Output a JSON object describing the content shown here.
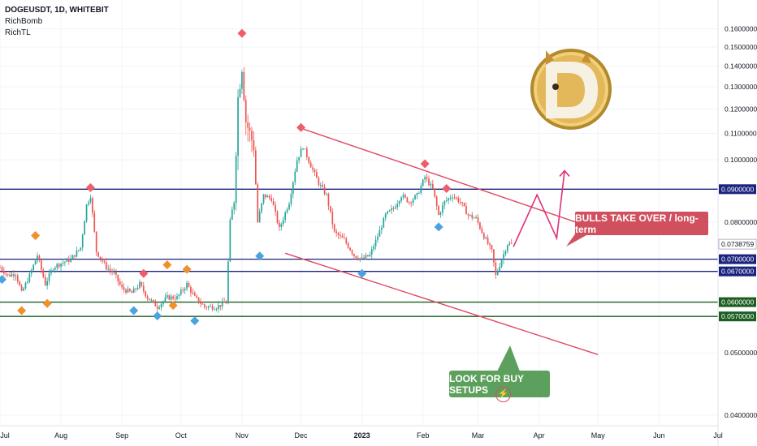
{
  "legend": {
    "symbol": "DOGEUSDT, 1D, WHITEBIT",
    "indicators": [
      "RichBomb",
      "RichTL"
    ]
  },
  "logo": {
    "letter": "D",
    "name": "dogecoin-logo"
  },
  "annotations": {
    "bulls": "BULLS TAKE OVER / long-term",
    "buy": "LOOK FOR BUY SETUPS"
  },
  "flash_icon": "lightning-icon",
  "colors": {
    "up": "#26a69a",
    "down": "#ef5350",
    "trendline": "#e04860",
    "resistance": "#1a237e",
    "support": "#1b5e20",
    "projection": "#e0307a",
    "marker_red": "#ef5d6b",
    "marker_blue": "#4aa3df",
    "marker_orange": "#f0902a",
    "callout_red": "#d05060",
    "callout_green": "#5da05d"
  },
  "chart_data": {
    "type": "candlestick",
    "symbol": "DOGEUSDT",
    "timeframe": "1D",
    "exchange": "WHITEBIT",
    "y_scale": "log",
    "ylim": [
      0.0385,
      0.1775
    ],
    "x_start": "2022-07-01",
    "x_end": "2023-07-01",
    "last_price": "0.0738759",
    "y_ticks": [
      {
        "value": 0.16,
        "label": "0.1600000"
      },
      {
        "value": 0.15,
        "label": "0.1500000"
      },
      {
        "value": 0.14,
        "label": "0.1400000"
      },
      {
        "value": 0.13,
        "label": "0.1300000"
      },
      {
        "value": 0.12,
        "label": "0.1200000"
      },
      {
        "value": 0.11,
        "label": "0.1100000"
      },
      {
        "value": 0.1,
        "label": "0.1000000"
      },
      {
        "value": 0.08,
        "label": "0.0800000"
      },
      {
        "value": 0.05,
        "label": "0.0500000"
      },
      {
        "value": 0.04,
        "label": "0.0400000"
      }
    ],
    "x_ticks": [
      {
        "date": "2022-07-01",
        "label": "Jul",
        "bold": false
      },
      {
        "date": "2022-08-01",
        "label": "Aug",
        "bold": false
      },
      {
        "date": "2022-09-01",
        "label": "Sep",
        "bold": false
      },
      {
        "date": "2022-10-01",
        "label": "Oct",
        "bold": false
      },
      {
        "date": "2022-11-01",
        "label": "Nov",
        "bold": false
      },
      {
        "date": "2022-12-01",
        "label": "Dec",
        "bold": false
      },
      {
        "date": "2023-01-01",
        "label": "2023",
        "bold": true
      },
      {
        "date": "2023-02-01",
        "label": "Feb",
        "bold": false
      },
      {
        "date": "2023-03-01",
        "label": "Mar",
        "bold": false
      },
      {
        "date": "2023-04-01",
        "label": "Apr",
        "bold": false
      },
      {
        "date": "2023-05-01",
        "label": "May",
        "bold": false
      },
      {
        "date": "2023-06-01",
        "label": "Jun",
        "bold": false
      },
      {
        "date": "2023-07-01",
        "label": "Jul",
        "bold": false
      }
    ],
    "horizontal_levels": [
      {
        "value": 0.09,
        "label": "0.0900000",
        "kind": "resistance"
      },
      {
        "value": 0.07,
        "label": "0.0700000",
        "kind": "resistance"
      },
      {
        "value": 0.067,
        "label": "0.0670000",
        "kind": "resistance"
      },
      {
        "value": 0.06,
        "label": "0.0600000",
        "kind": "support"
      },
      {
        "value": 0.057,
        "label": "0.0570000",
        "kind": "support"
      }
    ],
    "trendlines": [
      {
        "from": {
          "date": "2022-12-01",
          "value": 0.112
        },
        "to": {
          "date": "2023-04-30",
          "value": 0.078
        }
      },
      {
        "from": {
          "date": "2022-11-23",
          "value": 0.0715
        },
        "to": {
          "date": "2023-05-01",
          "value": 0.0497
        }
      }
    ],
    "projection_path": [
      {
        "date": "2023-03-19",
        "value": 0.0732
      },
      {
        "date": "2023-03-31",
        "value": 0.0882
      },
      {
        "date": "2023-04-10",
        "value": 0.0755
      },
      {
        "date": "2023-04-14",
        "value": 0.0962
      }
    ],
    "markers": [
      {
        "date": "2022-07-02",
        "type": "blue",
        "value": 0.0651
      },
      {
        "date": "2022-07-12",
        "type": "orange",
        "value": 0.0582
      },
      {
        "date": "2022-07-19",
        "type": "orange",
        "value": 0.0762
      },
      {
        "date": "2022-07-25",
        "type": "orange",
        "value": 0.0597
      },
      {
        "date": "2022-08-16",
        "type": "red",
        "value": 0.0905
      },
      {
        "date": "2022-09-07",
        "type": "blue",
        "value": 0.0582
      },
      {
        "date": "2022-09-12",
        "type": "red",
        "value": 0.0665
      },
      {
        "date": "2022-09-19",
        "type": "blue",
        "value": 0.0571
      },
      {
        "date": "2022-09-24",
        "type": "orange",
        "value": 0.0686
      },
      {
        "date": "2022-09-27",
        "type": "orange",
        "value": 0.0593
      },
      {
        "date": "2022-10-04",
        "type": "orange",
        "value": 0.0675
      },
      {
        "date": "2022-10-08",
        "type": "blue",
        "value": 0.0561
      },
      {
        "date": "2022-11-01",
        "type": "red",
        "value": 0.1575
      },
      {
        "date": "2022-11-10",
        "type": "blue",
        "value": 0.0708
      },
      {
        "date": "2022-12-01",
        "type": "red",
        "value": 0.1123
      },
      {
        "date": "2023-01-01",
        "type": "blue",
        "value": 0.0665
      },
      {
        "date": "2023-02-02",
        "type": "red",
        "value": 0.0986
      },
      {
        "date": "2023-02-09",
        "type": "blue",
        "value": 0.0786
      },
      {
        "date": "2023-02-13",
        "type": "red",
        "value": 0.0902
      }
    ],
    "price_path": [
      [
        "2022-07-01",
        0.068
      ],
      [
        "2022-07-05",
        0.066
      ],
      [
        "2022-07-09",
        0.0665
      ],
      [
        "2022-07-12",
        0.062
      ],
      [
        "2022-07-16",
        0.066
      ],
      [
        "2022-07-20",
        0.071
      ],
      [
        "2022-07-24",
        0.064
      ],
      [
        "2022-07-28",
        0.068
      ],
      [
        "2022-08-01",
        0.069
      ],
      [
        "2022-08-06",
        0.07
      ],
      [
        "2022-08-11",
        0.073
      ],
      [
        "2022-08-14",
        0.085
      ],
      [
        "2022-08-16",
        0.088
      ],
      [
        "2022-08-19",
        0.072
      ],
      [
        "2022-08-24",
        0.068
      ],
      [
        "2022-08-28",
        0.0665
      ],
      [
        "2022-09-01",
        0.063
      ],
      [
        "2022-09-06",
        0.062
      ],
      [
        "2022-09-10",
        0.064
      ],
      [
        "2022-09-14",
        0.061
      ],
      [
        "2022-09-19",
        0.059
      ],
      [
        "2022-09-24",
        0.061
      ],
      [
        "2022-09-29",
        0.061
      ],
      [
        "2022-10-04",
        0.064
      ],
      [
        "2022-10-08",
        0.061
      ],
      [
        "2022-10-13",
        0.059
      ],
      [
        "2022-10-19",
        0.059
      ],
      [
        "2022-10-24",
        0.06
      ],
      [
        "2022-10-26",
        0.08
      ],
      [
        "2022-10-28",
        0.087
      ],
      [
        "2022-10-30",
        0.125
      ],
      [
        "2022-11-01",
        0.14
      ],
      [
        "2022-11-03",
        0.115
      ],
      [
        "2022-11-05",
        0.11
      ],
      [
        "2022-11-07",
        0.105
      ],
      [
        "2022-11-09",
        0.08
      ],
      [
        "2022-11-12",
        0.088
      ],
      [
        "2022-11-16",
        0.087
      ],
      [
        "2022-11-20",
        0.078
      ],
      [
        "2022-11-25",
        0.086
      ],
      [
        "2022-11-29",
        0.1
      ],
      [
        "2022-12-02",
        0.105
      ],
      [
        "2022-12-06",
        0.098
      ],
      [
        "2022-12-10",
        0.092
      ],
      [
        "2022-12-14",
        0.088
      ],
      [
        "2022-12-18",
        0.077
      ],
      [
        "2022-12-23",
        0.075
      ],
      [
        "2022-12-28",
        0.071
      ],
      [
        "2023-01-01",
        0.07
      ],
      [
        "2023-01-05",
        0.071
      ],
      [
        "2023-01-09",
        0.076
      ],
      [
        "2023-01-13",
        0.082
      ],
      [
        "2023-01-17",
        0.084
      ],
      [
        "2023-01-21",
        0.088
      ],
      [
        "2023-01-25",
        0.086
      ],
      [
        "2023-01-29",
        0.088
      ],
      [
        "2023-02-02",
        0.094
      ],
      [
        "2023-02-06",
        0.09
      ],
      [
        "2023-02-09",
        0.082
      ],
      [
        "2023-02-12",
        0.086
      ],
      [
        "2023-02-16",
        0.088
      ],
      [
        "2023-02-20",
        0.086
      ],
      [
        "2023-02-24",
        0.082
      ],
      [
        "2023-02-28",
        0.081
      ],
      [
        "2023-03-04",
        0.076
      ],
      [
        "2023-03-08",
        0.072
      ],
      [
        "2023-03-10",
        0.066
      ],
      [
        "2023-03-13",
        0.07
      ],
      [
        "2023-03-16",
        0.074
      ],
      [
        "2023-03-18",
        0.0739
      ]
    ]
  }
}
